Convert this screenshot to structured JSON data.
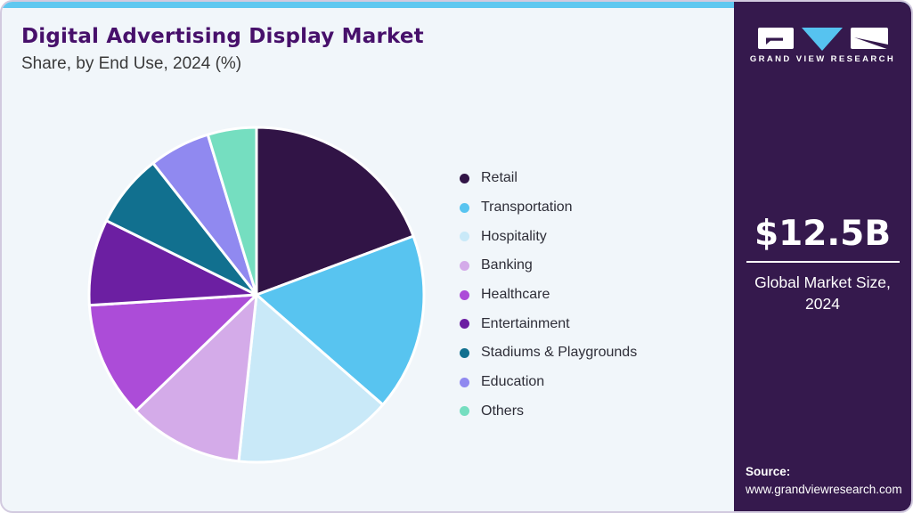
{
  "header": {
    "title": "Digital Advertising Display Market",
    "subtitle": "Share, by End Use, 2024 (%)"
  },
  "sidebar": {
    "logo_text": "GRAND VIEW RESEARCH",
    "market_size_value": "$12.5B",
    "market_size_label_line1": "Global Market Size,",
    "market_size_label_line2": "2024",
    "source_label": "Source:",
    "source_url": "www.grandviewresearch.com"
  },
  "chart_data": {
    "type": "pie",
    "title": "Digital Advertising Display Market Share, by End Use, 2024 (%)",
    "unit": "%",
    "categories": [
      "Retail",
      "Transportation",
      "Hospitality",
      "Banking",
      "Healthcare",
      "Entertainment",
      "Stadiums & Playgrounds",
      "Education",
      "Others"
    ],
    "values": [
      19.3,
      17.1,
      15.3,
      11.1,
      11.2,
      8.3,
      7.1,
      5.9,
      4.7
    ],
    "colors": [
      "#311446",
      "#58c4f0",
      "#c9e9f8",
      "#d4abe9",
      "#ac4cd8",
      "#6c1fa2",
      "#11708f",
      "#9089f0",
      "#75dec0"
    ],
    "start_angle_deg": 0,
    "direction": "clockwise",
    "legend_position": "right",
    "slice_gap_color": "#ffffff"
  },
  "theme": {
    "canvas_bg": "#f1f6fa",
    "canvas_border": "#d2cadf",
    "top_strip": "#5fc8f0",
    "sidebar_bg": "#35194d",
    "title_color": "#47106b",
    "subtitle_color": "#3a3a3a",
    "legend_text": "#2e2e38",
    "logo_triangle": "#56c3f0"
  }
}
